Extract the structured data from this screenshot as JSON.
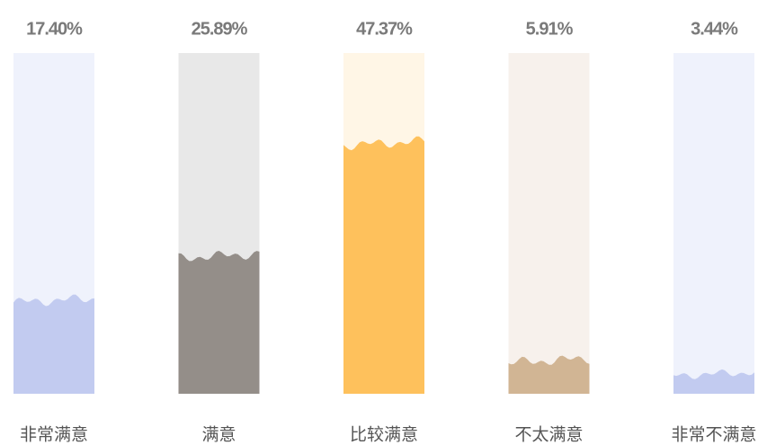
{
  "chart_data": {
    "type": "bar",
    "categories": [
      "非常满意",
      "满意",
      "比较满意",
      "不太满意",
      "非常不满意"
    ],
    "values": [
      17.4,
      25.89,
      47.37,
      5.91,
      3.44
    ],
    "value_labels": [
      "17.40%",
      "25.89%",
      "47.37%",
      "5.91%",
      "3.44%"
    ],
    "colors": [
      "#c2cbf0",
      "#948e89",
      "#fec15c",
      "#d1b594",
      "#c2cbf0"
    ],
    "track_colors": [
      "#eff2fc",
      "#e8e8e8",
      "#fff6e6",
      "#f7f1ec",
      "#eff2fc"
    ],
    "ylim": [
      0,
      65
    ]
  }
}
